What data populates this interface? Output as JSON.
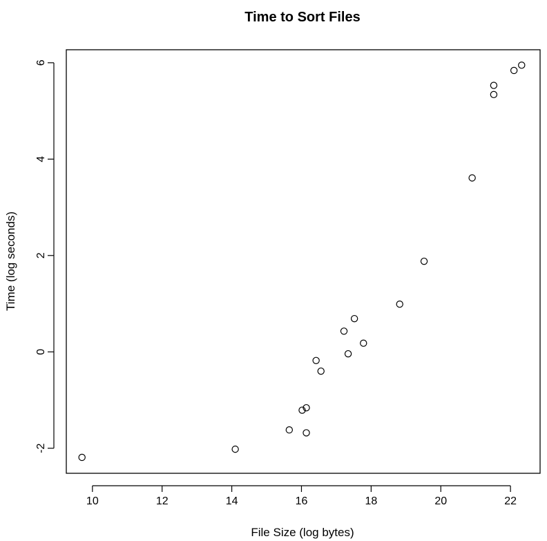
{
  "chart_data": {
    "type": "scatter",
    "title": "Time to Sort Files",
    "xlabel": "File Size (log bytes)",
    "ylabel": "Time (log seconds)",
    "xlim": [
      9.25,
      22.85
    ],
    "ylim": [
      -2.52,
      6.27
    ],
    "xticks": [
      10,
      12,
      14,
      16,
      18,
      20,
      22
    ],
    "yticks": [
      -2,
      0,
      2,
      4,
      6
    ],
    "grid": false,
    "legend": "none",
    "marker": "open-circle",
    "points": [
      {
        "x": 9.7,
        "y": -2.19
      },
      {
        "x": 14.1,
        "y": -2.02
      },
      {
        "x": 15.65,
        "y": -1.62
      },
      {
        "x": 16.02,
        "y": -1.21
      },
      {
        "x": 16.14,
        "y": -1.16
      },
      {
        "x": 16.14,
        "y": -1.68
      },
      {
        "x": 16.42,
        "y": -0.18
      },
      {
        "x": 16.56,
        "y": -0.4
      },
      {
        "x": 17.22,
        "y": 0.43
      },
      {
        "x": 17.34,
        "y": -0.04
      },
      {
        "x": 17.52,
        "y": 0.69
      },
      {
        "x": 17.78,
        "y": 0.18
      },
      {
        "x": 18.82,
        "y": 0.99
      },
      {
        "x": 19.52,
        "y": 1.88
      },
      {
        "x": 20.9,
        "y": 3.61
      },
      {
        "x": 21.52,
        "y": 5.34
      },
      {
        "x": 21.52,
        "y": 5.53
      },
      {
        "x": 22.1,
        "y": 5.84
      },
      {
        "x": 22.32,
        "y": 5.95
      }
    ]
  }
}
